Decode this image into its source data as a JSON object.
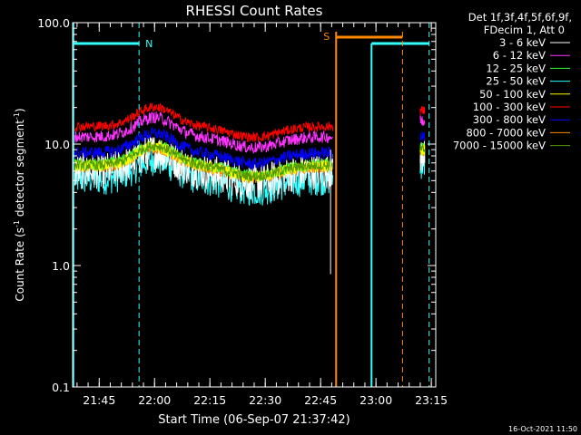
{
  "chart_data": {
    "type": "line",
    "title": "RHESSI Count Rates",
    "xlabel": "Start Time (06-Sep-07 21:37:42)",
    "ylabel_main": "Count Rate (s",
    "ylabel_sup1": "-1",
    "ylabel_mid": " detector segment",
    "ylabel_sup2": "-1",
    "ylabel_end": ")",
    "yscale": "log",
    "ylim": [
      0.1,
      100.0
    ],
    "xlim_minutes": [
      21.63,
      23.27
    ],
    "ytick_labels": [
      {
        "value": 100.0,
        "label": "100.0"
      },
      {
        "value": 10.0,
        "label": "10.0"
      },
      {
        "value": 1.0,
        "label": "1.0"
      },
      {
        "value": 0.1,
        "label": "0.1"
      }
    ],
    "xtick_labels": [
      {
        "value": 21.75,
        "label": "21:45"
      },
      {
        "value": 22.0,
        "label": "22:00"
      },
      {
        "value": 22.25,
        "label": "22:15"
      },
      {
        "value": 22.5,
        "label": "22:30"
      },
      {
        "value": 22.75,
        "label": "22:45"
      },
      {
        "value": 23.0,
        "label": "23:00"
      },
      {
        "value": 23.25,
        "label": "23:15"
      }
    ],
    "legend_header": [
      "Det 1f,3f,4f,5f,6f,9f,",
      "FDecim 1, Att 0"
    ],
    "legend_position": "top-right, outside plot",
    "series": [
      {
        "name": "3 - 6 keV",
        "color": "#ffffff",
        "base": 6.0,
        "noise": 0.15
      },
      {
        "name": "6 - 12 keV",
        "color": "#ff33ff",
        "base": 11.5,
        "noise": 0.05
      },
      {
        "name": "12 - 25 keV",
        "color": "#33ff33",
        "base": 6.8,
        "noise": 0.05
      },
      {
        "name": "25 - 50 keV",
        "color": "#33ffff",
        "base": 5.2,
        "noise": 0.14
      },
      {
        "name": "50 - 100 keV",
        "color": "#ffff00",
        "base": 6.6,
        "noise": 0.05
      },
      {
        "name": "100 - 300 keV",
        "color": "#ff0000",
        "base": 14.0,
        "noise": 0.04
      },
      {
        "name": "300 - 800 keV",
        "color": "#0000ff",
        "base": 8.5,
        "noise": 0.05
      },
      {
        "name": "800 - 7000 keV",
        "color": "#ff8800",
        "base": 6.5,
        "noise": 0.05
      },
      {
        "name": "7000 - 15000 keV",
        "color": "#559900",
        "base": 6.7,
        "noise": 0.04
      }
    ],
    "annotations": [
      {
        "label": "N",
        "color": "#33ffff"
      },
      {
        "label": "S",
        "color": "#ff8800"
      }
    ],
    "timestamp": "16-Oct-2021 11:50"
  }
}
